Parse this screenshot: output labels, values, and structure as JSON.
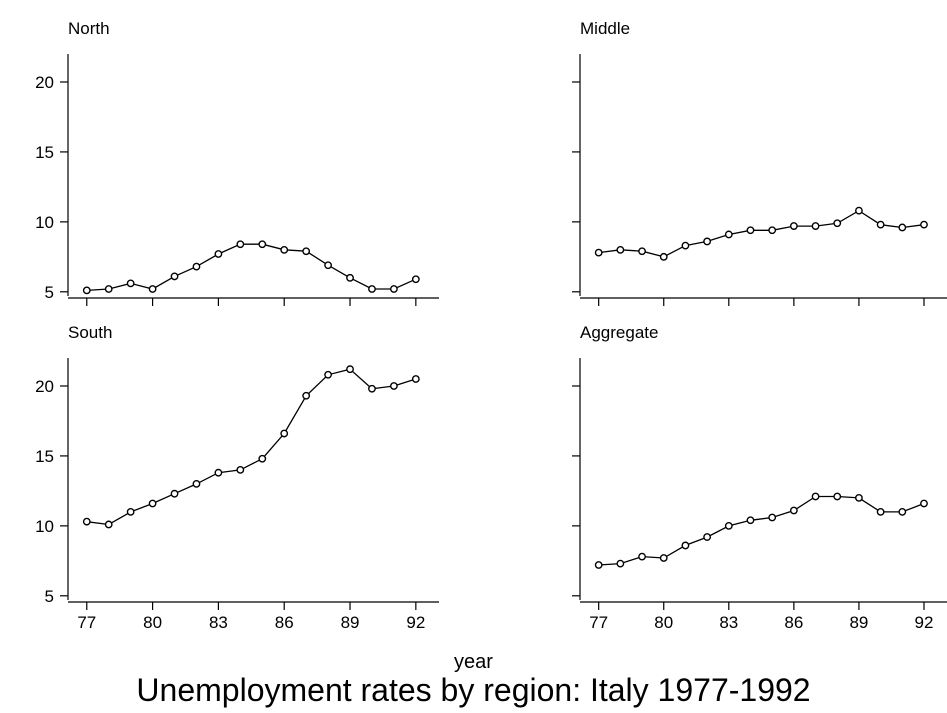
{
  "chart_data": {
    "type": "line",
    "title": "Unemployment rates by region: Italy 1977-1992",
    "xlabel": "year",
    "ylabel": "",
    "x": [
      1977,
      1978,
      1979,
      1980,
      1981,
      1982,
      1983,
      1984,
      1985,
      1986,
      1987,
      1988,
      1989,
      1990,
      1991,
      1992
    ],
    "x_tick_labels": [
      "77",
      "80",
      "83",
      "86",
      "89",
      "92"
    ],
    "x_tick_values": [
      1977,
      1980,
      1983,
      1986,
      1989,
      1992
    ],
    "xlim": [
      1976.6,
      1992.6
    ],
    "panels": [
      {
        "name": "North",
        "ylim": [
          4.7,
          22
        ],
        "y_ticks": [
          5,
          10,
          15,
          20
        ],
        "values": [
          5.1,
          5.2,
          5.6,
          5.2,
          6.1,
          6.8,
          7.7,
          8.4,
          8.4,
          8.0,
          7.9,
          6.9,
          6.0,
          5.2,
          5.2,
          5.9
        ]
      },
      {
        "name": "Middle",
        "ylim": [
          4.7,
          22
        ],
        "y_ticks": [
          5,
          10,
          15,
          20
        ],
        "values": [
          7.8,
          8.0,
          7.9,
          7.5,
          8.3,
          8.6,
          9.1,
          9.4,
          9.4,
          9.7,
          9.7,
          9.9,
          10.8,
          9.8,
          9.6,
          9.8
        ]
      },
      {
        "name": "South",
        "ylim": [
          4.7,
          22
        ],
        "y_ticks": [
          5,
          10,
          15,
          20
        ],
        "values": [
          10.3,
          10.1,
          11.0,
          11.6,
          12.3,
          13.0,
          13.8,
          14.0,
          14.8,
          16.6,
          19.3,
          20.8,
          21.2,
          19.8,
          20.0,
          20.5
        ]
      },
      {
        "name": "Aggregate",
        "ylim": [
          4.7,
          22
        ],
        "y_ticks": [
          5,
          10,
          15,
          20
        ],
        "values": [
          7.2,
          7.3,
          7.8,
          7.7,
          8.6,
          9.2,
          10.0,
          10.4,
          10.6,
          11.1,
          12.1,
          12.1,
          12.0,
          11.0,
          11.0,
          11.6
        ]
      }
    ]
  }
}
